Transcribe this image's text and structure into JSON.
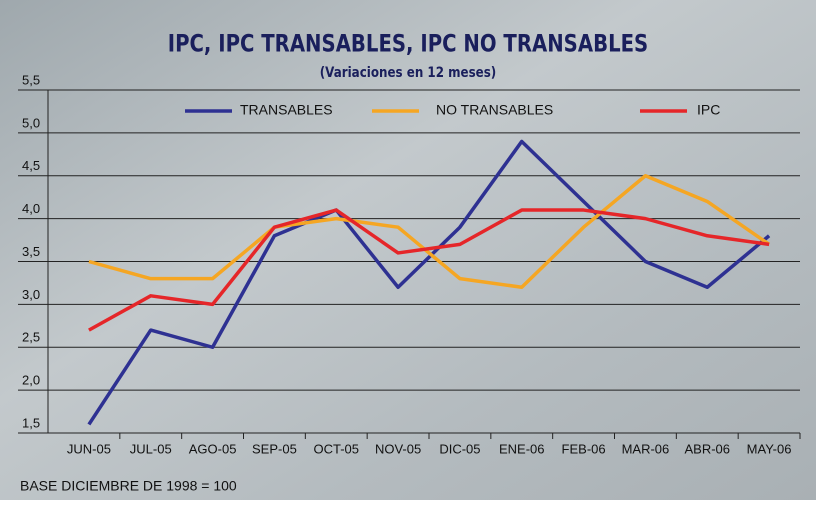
{
  "chart_data": {
    "type": "line",
    "title": "IPC, IPC TRANSABLES, IPC NO TRANSABLES",
    "subtitle": "(Variaciones en 12 meses)",
    "footnote": "BASE DICIEMBRE DE 1998 = 100",
    "categories": [
      "JUN-05",
      "JUL-05",
      "AGO-05",
      "SEP-05",
      "OCT-05",
      "NOV-05",
      "DIC-05",
      "ENE-06",
      "FEB-06",
      "MAR-06",
      "ABR-06",
      "MAY-06"
    ],
    "series": [
      {
        "name": "TRANSABLES",
        "color": "#2e3192",
        "values": [
          1.6,
          2.7,
          2.5,
          3.8,
          4.1,
          3.2,
          3.9,
          4.9,
          4.2,
          3.5,
          3.2,
          3.8
        ]
      },
      {
        "name": "NO TRANSABLES",
        "color": "#f5a623",
        "values": [
          3.5,
          3.3,
          3.3,
          3.9,
          4.0,
          3.9,
          3.3,
          3.2,
          3.9,
          4.5,
          4.2,
          3.7
        ]
      },
      {
        "name": "IPC",
        "color": "#e52629",
        "values": [
          2.7,
          3.1,
          3.0,
          3.9,
          4.1,
          3.6,
          3.7,
          4.1,
          4.1,
          4.0,
          3.8,
          3.7
        ]
      }
    ],
    "ylim": [
      1.5,
      5.5
    ],
    "yticks": [
      {
        "value": 1.5,
        "label": "1,5"
      },
      {
        "value": 2,
        "label": "2,0"
      },
      {
        "value": 2.5,
        "label": "2,5"
      },
      {
        "value": 3,
        "label": "3,0"
      },
      {
        "value": 3.5,
        "label": "3,5"
      },
      {
        "value": 4,
        "label": "4,0"
      },
      {
        "value": 4.5,
        "label": "4,5"
      },
      {
        "value": 5,
        "label": "5,0"
      },
      {
        "value": 5.5,
        "label": "5,5"
      }
    ],
    "grid": true,
    "legend": "top"
  }
}
